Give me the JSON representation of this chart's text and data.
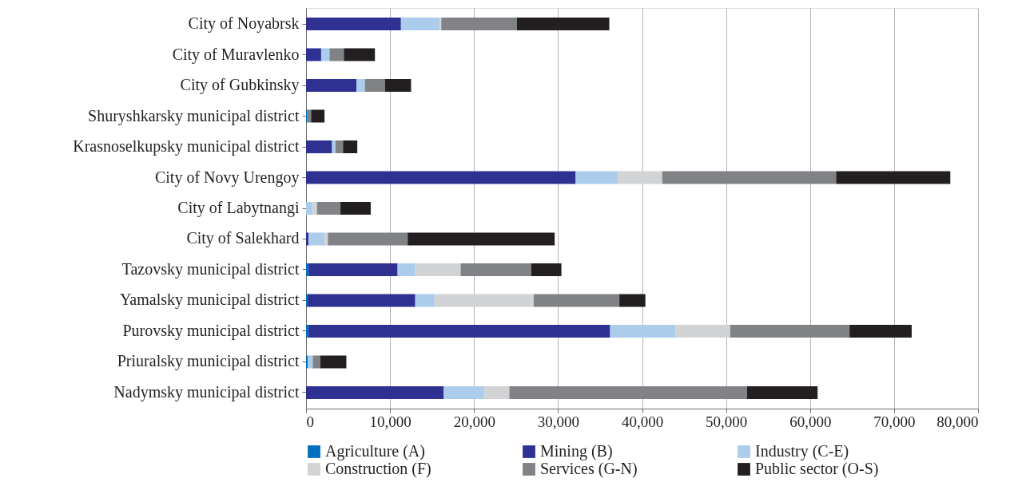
{
  "chart_data": {
    "type": "bar",
    "orientation": "horizontal",
    "stacked": true,
    "categories": [
      "City of Noyabrsk",
      "City of Muravlenko",
      "City of Gubkinsky",
      "Shuryshkarsky municipal district",
      "Krasnoselkupsky municipal district",
      "City of Novy Urengoy",
      "City of Labytnangi",
      "City of Salekhard",
      "Tazovsky municipal district",
      "Yamalsky municipal district",
      "Purovsky municipal district",
      "Priuralsky municipal district",
      "Nadymsky municipal district"
    ],
    "series": [
      {
        "name": "Agriculture (A)",
        "color": "#0070c0",
        "values": [
          0,
          0,
          0,
          100,
          0,
          0,
          0,
          0,
          300,
          200,
          300,
          200,
          0
        ]
      },
      {
        "name": "Mining (B)",
        "color": "#2e3192",
        "values": [
          11300,
          1800,
          6000,
          0,
          3100,
          32100,
          0,
          300,
          10600,
          12800,
          35900,
          0,
          16400
        ]
      },
      {
        "name": "Industry (C-E)",
        "color": "#abcdeb",
        "values": [
          4600,
          1000,
          1000,
          0,
          400,
          5000,
          800,
          1900,
          2100,
          2300,
          7800,
          600,
          4800
        ]
      },
      {
        "name": "Construction (F)",
        "color": "#d1d3d4",
        "values": [
          200,
          null,
          null,
          0,
          0,
          5300,
          500,
          400,
          5400,
          11800,
          6500,
          0,
          3000
        ]
      },
      {
        "name": "Services (G-N)",
        "color": "#808285",
        "values": [
          9000,
          1700,
          2400,
          500,
          900,
          20700,
          2800,
          9500,
          8400,
          10200,
          14200,
          900,
          28300
        ]
      },
      {
        "name": "Public sector (O-S)",
        "color": "#231f20",
        "values": [
          11000,
          3700,
          3100,
          1600,
          1700,
          13600,
          3600,
          17500,
          3600,
          3100,
          7400,
          3100,
          8400
        ]
      }
    ],
    "xlim": [
      0,
      80000
    ],
    "xticks": [
      0,
      {
        "value": 10000,
        "label": "10,000"
      },
      {
        "value": 20000,
        "label": "20,000"
      },
      {
        "value": 30000,
        "label": "30,000"
      },
      {
        "value": 40000,
        "label": "40,000"
      },
      {
        "value": 50000,
        "label": "50,000"
      },
      {
        "value": 60000,
        "label": "60,000"
      },
      {
        "value": 70000,
        "label": "70,000"
      },
      {
        "value": 80000,
        "label": "80,000"
      }
    ],
    "grid": "x",
    "legend": "bottom"
  }
}
